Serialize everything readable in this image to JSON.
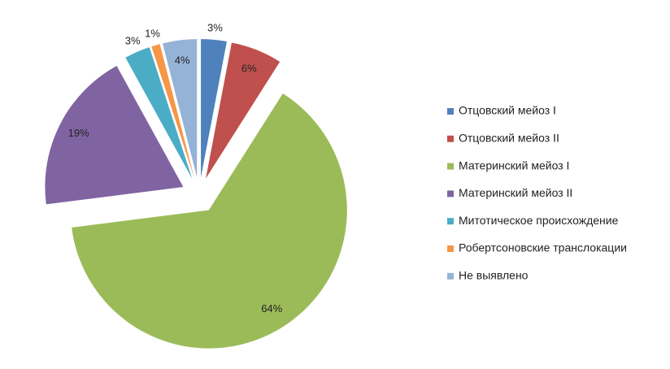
{
  "chart_data": {
    "type": "pie",
    "categories": [
      "Отцовский мейоз I",
      "Отцовский  мейоз II",
      "Материнский мейоз I",
      "Материнский мейоз II",
      "Митотическое происхождение",
      "Робертсоновские транслокации",
      "Не выявлено"
    ],
    "values": [
      3,
      6,
      64,
      19,
      3,
      1,
      4
    ],
    "value_labels": [
      "3%",
      "6%",
      "64%",
      "19%",
      "3%",
      "1%",
      "4%"
    ],
    "colors": [
      "#4f81bd",
      "#c0504d",
      "#9bbb59",
      "#8064a2",
      "#4bacc6",
      "#f79646",
      "#95b3d7"
    ],
    "legend": "right"
  }
}
